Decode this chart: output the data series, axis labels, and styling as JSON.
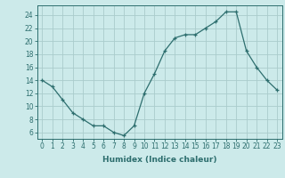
{
  "x": [
    0,
    1,
    2,
    3,
    4,
    5,
    6,
    7,
    8,
    9,
    10,
    11,
    12,
    13,
    14,
    15,
    16,
    17,
    18,
    19,
    20,
    21,
    22,
    23
  ],
  "y": [
    14,
    13,
    11,
    9,
    8,
    7,
    7,
    6,
    5.5,
    7,
    12,
    15,
    18.5,
    20.5,
    21,
    21,
    22,
    23,
    24.5,
    24.5,
    18.5,
    16,
    14,
    12.5
  ],
  "line_color": "#2d6e6e",
  "marker": "+",
  "bg_color": "#cceaea",
  "grid_color": "#aacccc",
  "xlabel": "Humidex (Indice chaleur)",
  "xlim": [
    -0.5,
    23.5
  ],
  "ylim": [
    5,
    25.5
  ],
  "yticks": [
    6,
    8,
    10,
    12,
    14,
    16,
    18,
    20,
    22,
    24
  ],
  "xticks": [
    0,
    1,
    2,
    3,
    4,
    5,
    6,
    7,
    8,
    9,
    10,
    11,
    12,
    13,
    14,
    15,
    16,
    17,
    18,
    19,
    20,
    21,
    22,
    23
  ],
  "tick_fontsize": 5.5,
  "label_fontsize": 6.5
}
